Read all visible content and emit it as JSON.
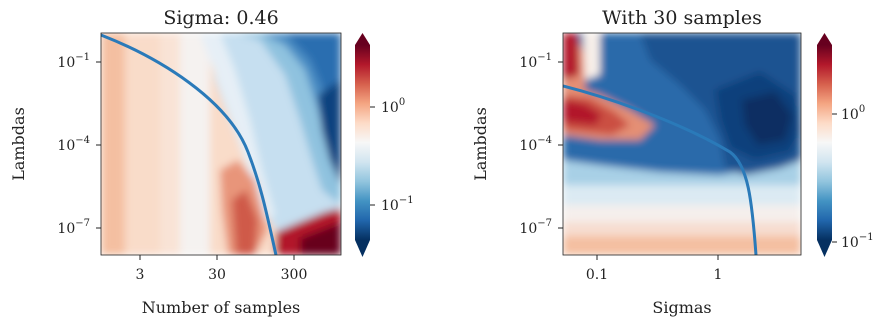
{
  "panels": [
    {
      "title": "Sigma: 0.46",
      "xlabel": "Number of samples",
      "ylabel": "Lambdas",
      "x_ticks": [
        "3",
        "30",
        "300"
      ],
      "y_ticks": [
        {
          "base": "10",
          "exp": "−1"
        },
        {
          "base": "10",
          "exp": "−4"
        },
        {
          "base": "10",
          "exp": "−7"
        }
      ],
      "colorbar_ticks": [
        {
          "base": "10",
          "exp": "0"
        },
        {
          "base": "10",
          "exp": "−1"
        }
      ]
    },
    {
      "title": "With 30 samples",
      "xlabel": "Sigmas",
      "ylabel": "Lambdas",
      "x_ticks": [
        "0.1",
        "1"
      ],
      "y_ticks": [
        {
          "base": "10",
          "exp": "−1"
        },
        {
          "base": "10",
          "exp": "−4"
        },
        {
          "base": "10",
          "exp": "−7"
        }
      ],
      "colorbar_ticks": [
        {
          "base": "10",
          "exp": "0"
        },
        {
          "base": "10",
          "exp": "−1"
        }
      ]
    }
  ],
  "chart_data": [
    {
      "type": "heatmap",
      "title": "Sigma: 0.46",
      "xlabel": "Number of samples",
      "ylabel": "Lambdas",
      "x_scale": "log",
      "y_scale": "log",
      "xlim": [
        1,
        600
      ],
      "ylim": [
        1e-09,
        1
      ],
      "x_ticks": [
        3,
        30,
        300
      ],
      "y_ticks": [
        0.1,
        0.0001,
        1e-07
      ],
      "colormap": "RdBu_r",
      "colorbar_ticks": [
        1,
        0.1
      ],
      "colorbar_range": [
        0.02,
        4
      ],
      "grid": false,
      "line": {
        "color": "#2a7ab9",
        "x": [
          1,
          3,
          10,
          30,
          60,
          100,
          150,
          200,
          220
        ],
        "y": [
          1,
          0.3,
          0.04,
          0.0008,
          3e-05,
          5e-07,
          1e-08,
          3e-09,
          1e-09
        ]
      }
    },
    {
      "type": "heatmap",
      "title": "With 30 samples",
      "xlabel": "Sigmas",
      "ylabel": "Lambdas",
      "x_scale": "log",
      "y_scale": "log",
      "xlim": [
        0.05,
        5
      ],
      "ylim": [
        1e-09,
        1
      ],
      "x_ticks": [
        0.1,
        1
      ],
      "y_ticks": [
        0.1,
        0.0001,
        1e-07
      ],
      "colormap": "RdBu_r",
      "colorbar_ticks": [
        1,
        0.1
      ],
      "colorbar_range": [
        0.07,
        5
      ],
      "grid": false,
      "line": {
        "color": "#2a7ab9",
        "x": [
          0.05,
          0.1,
          0.3,
          1,
          1.5,
          1.8,
          2,
          2.1
        ],
        "y": [
          0.01,
          0.006,
          0.002,
          0.0003,
          5e-05,
          5e-06,
          1e-07,
          1e-09
        ]
      }
    }
  ]
}
